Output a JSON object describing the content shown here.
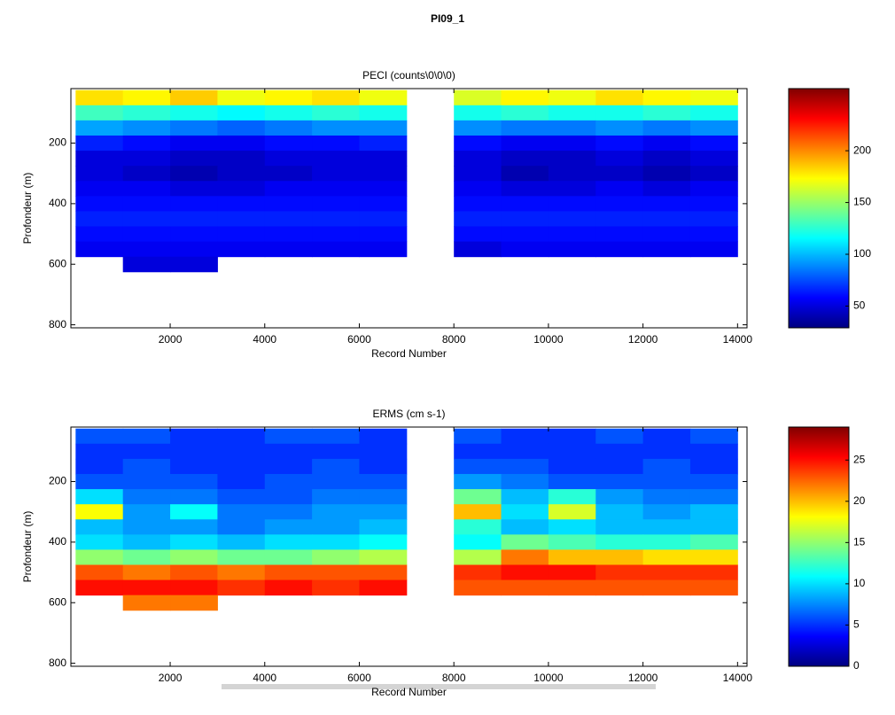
{
  "title": "PI09_1",
  "chart_data": [
    {
      "type": "heatmap",
      "title": "PECI (counts\\0\\0\\0)",
      "xlabel": "Record Number",
      "ylabel": "Profondeur (m)",
      "colormap": "jet",
      "y_reversed": true,
      "xlim": [
        -100,
        14200
      ],
      "ylim": [
        20,
        810
      ],
      "xticks": [
        2000,
        4000,
        6000,
        8000,
        10000,
        12000,
        14000
      ],
      "yticks": [
        200,
        400,
        600,
        800
      ],
      "x": [
        500,
        1500,
        2500,
        3500,
        4500,
        5500,
        6500,
        7500,
        8500,
        9500,
        10500,
        11500,
        12500,
        13500
      ],
      "y": [
        50,
        100,
        150,
        200,
        250,
        300,
        350,
        400,
        450,
        500,
        550,
        600
      ],
      "z": [
        [
          180,
          175,
          185,
          170,
          175,
          180,
          170,
          null,
          165,
          175,
          170,
          180,
          175,
          170
        ],
        [
          130,
          125,
          120,
          115,
          120,
          125,
          120,
          null,
          120,
          125,
          120,
          120,
          125,
          120
        ],
        [
          95,
          90,
          85,
          80,
          85,
          90,
          90,
          null,
          90,
          85,
          85,
          90,
          85,
          90
        ],
        [
          65,
          60,
          55,
          55,
          60,
          60,
          65,
          null,
          60,
          55,
          55,
          60,
          55,
          60
        ],
        [
          50,
          50,
          45,
          45,
          50,
          50,
          50,
          null,
          50,
          45,
          45,
          50,
          45,
          50
        ],
        [
          50,
          45,
          40,
          45,
          45,
          50,
          50,
          null,
          50,
          40,
          45,
          45,
          40,
          45
        ],
        [
          55,
          55,
          50,
          50,
          55,
          55,
          55,
          null,
          55,
          50,
          50,
          55,
          50,
          55
        ],
        [
          60,
          60,
          60,
          60,
          60,
          60,
          60,
          null,
          60,
          60,
          60,
          60,
          60,
          60
        ],
        [
          65,
          65,
          65,
          65,
          65,
          65,
          65,
          null,
          65,
          65,
          65,
          65,
          65,
          65
        ],
        [
          60,
          60,
          60,
          60,
          60,
          60,
          60,
          null,
          60,
          60,
          60,
          60,
          60,
          60
        ],
        [
          55,
          55,
          55,
          55,
          55,
          55,
          55,
          null,
          50,
          55,
          55,
          55,
          55,
          55
        ],
        [
          null,
          50,
          50,
          null,
          null,
          null,
          null,
          null,
          null,
          null,
          null,
          null,
          null,
          null
        ]
      ],
      "clim": [
        29,
        260
      ],
      "cticks": [
        50,
        100,
        150,
        200
      ]
    },
    {
      "type": "heatmap",
      "title": "ERMS (cm s-1)",
      "xlabel": "Record Number",
      "ylabel": "Profondeur (m)",
      "colormap": "jet",
      "y_reversed": true,
      "xlim": [
        -100,
        14200
      ],
      "ylim": [
        20,
        810
      ],
      "xticks": [
        2000,
        4000,
        6000,
        8000,
        10000,
        12000,
        14000
      ],
      "yticks": [
        200,
        400,
        600,
        800
      ],
      "x": [
        500,
        1500,
        2500,
        3500,
        4500,
        5500,
        6500,
        7500,
        8500,
        9500,
        10500,
        11500,
        12500,
        13500
      ],
      "y": [
        50,
        100,
        150,
        200,
        250,
        300,
        350,
        400,
        450,
        500,
        550,
        600
      ],
      "z": [
        [
          6,
          6,
          5,
          5,
          6,
          6,
          5,
          null,
          6,
          5,
          5,
          6,
          5,
          6
        ],
        [
          5,
          5,
          5,
          5,
          5,
          5,
          5,
          null,
          5,
          5,
          5,
          5,
          5,
          5
        ],
        [
          5,
          6,
          5,
          5,
          5,
          6,
          5,
          null,
          6,
          6,
          5,
          5,
          6,
          5
        ],
        [
          6,
          6,
          6,
          5,
          6,
          6,
          6,
          null,
          8,
          7,
          6,
          6,
          6,
          6
        ],
        [
          10,
          7,
          7,
          6,
          6,
          7,
          7,
          null,
          14,
          9,
          12,
          8,
          7,
          7
        ],
        [
          18,
          8,
          11,
          7,
          7,
          8,
          8,
          null,
          20,
          10,
          17,
          9,
          8,
          9
        ],
        [
          9,
          8,
          8,
          7,
          8,
          8,
          9,
          null,
          12,
          9,
          10,
          9,
          9,
          9
        ],
        [
          10,
          9,
          10,
          9,
          10,
          10,
          11,
          null,
          11,
          14,
          13,
          12,
          12,
          13
        ],
        [
          15,
          14,
          15,
          14,
          14,
          15,
          16,
          null,
          16,
          22,
          20,
          20,
          19,
          19
        ],
        [
          23,
          22,
          23,
          22,
          23,
          23,
          23,
          null,
          24,
          25,
          25,
          24,
          24,
          24
        ],
        [
          25,
          25,
          25,
          24,
          25,
          24,
          25,
          null,
          23,
          23,
          23,
          23,
          23,
          23
        ],
        [
          null,
          22,
          22,
          null,
          null,
          null,
          null,
          null,
          null,
          null,
          null,
          null,
          null,
          null
        ]
      ],
      "clim": [
        0,
        29
      ],
      "cticks": [
        0,
        5,
        10,
        15,
        20,
        25
      ]
    }
  ]
}
